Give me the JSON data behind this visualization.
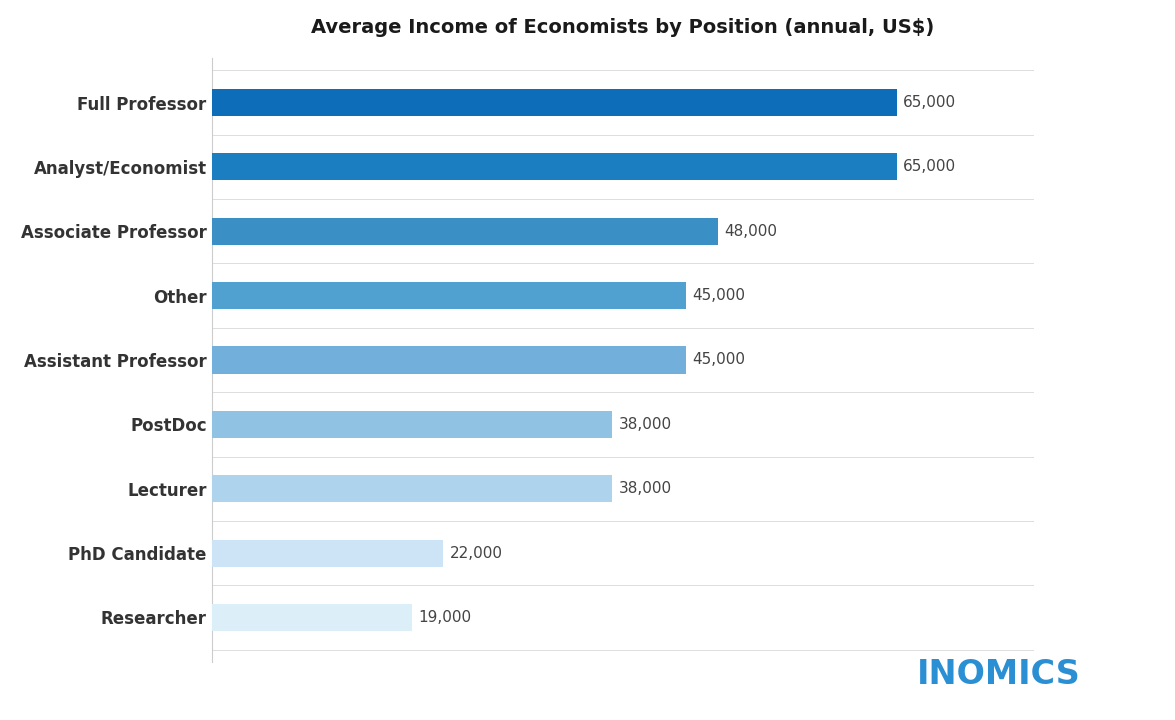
{
  "title": "Average Income of Economists by Position (annual, US$)",
  "categories": [
    "Researcher",
    "PhD Candidate",
    "Lecturer",
    "PostDoc",
    "Assistant Professor",
    "Other",
    "Associate Professor",
    "Analyst/Economist",
    "Full Professor"
  ],
  "values": [
    19000,
    22000,
    38000,
    38000,
    45000,
    45000,
    48000,
    65000,
    65000
  ],
  "bar_colors": [
    "#dceef8",
    "#cce4f5",
    "#aed4ed",
    "#90c2e4",
    "#72b0db",
    "#50a0d0",
    "#3a90c5",
    "#1b7ec0",
    "#0d6db8"
  ],
  "labels": [
    "19,000",
    "22,000",
    "38,000",
    "38,000",
    "45,000",
    "45,000",
    "48,000",
    "65,000",
    "65,000"
  ],
  "xlim": [
    0,
    78000
  ],
  "bar_height": 0.42,
  "title_fontsize": 14,
  "tick_fontsize": 12,
  "value_fontsize": 11,
  "inomics_color": "#2b8fd4",
  "inomics_text": "INOMICS",
  "background_color": "#ffffff",
  "label_color": "#333333",
  "value_color": "#444444",
  "spine_color": "#cccccc",
  "hline_color": "#dddddd"
}
